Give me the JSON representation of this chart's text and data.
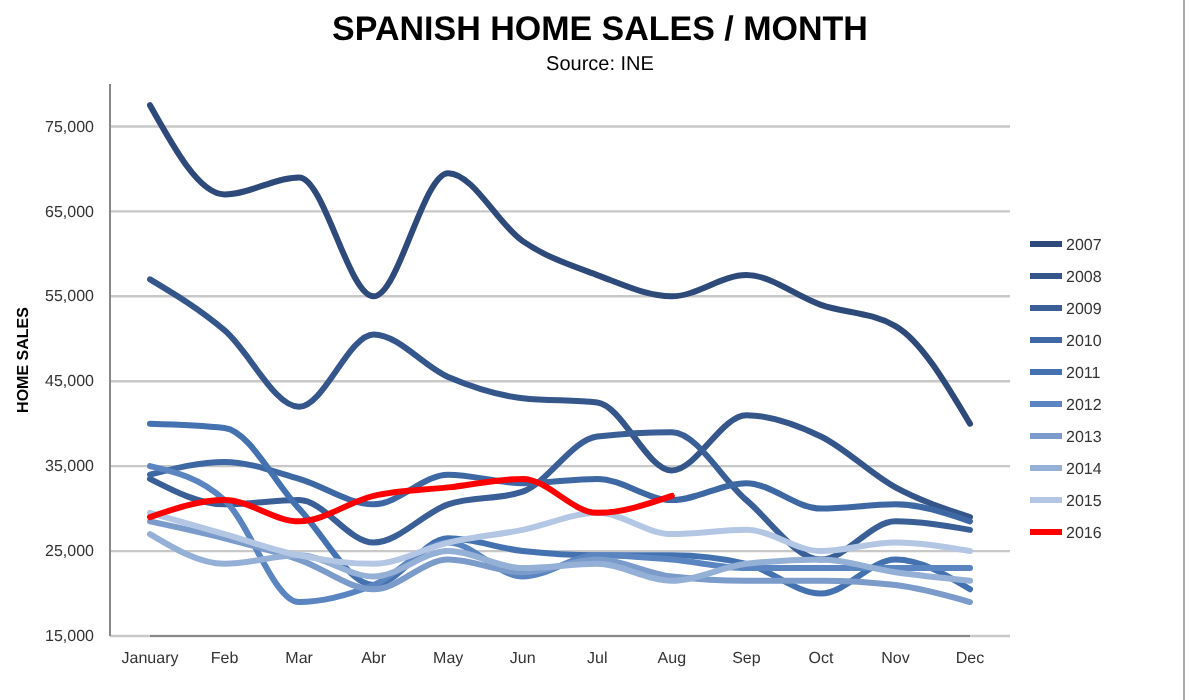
{
  "chart_data": {
    "type": "line",
    "title": "SPANISH HOME SALES / MONTH",
    "subtitle": "Source: INE",
    "ylabel": "HOME SALES",
    "categories": [
      "January",
      "Feb",
      "Mar",
      "Abr",
      "May",
      "Jun",
      "Jul",
      "Aug",
      "Sep",
      "Oct",
      "Nov",
      "Dec"
    ],
    "ylim": [
      15000,
      80000
    ],
    "yticks": [
      {
        "value": 15000,
        "label": "15,000"
      },
      {
        "value": 25000,
        "label": "25,000"
      },
      {
        "value": 35000,
        "label": "35,000"
      },
      {
        "value": 45000,
        "label": "45,000"
      },
      {
        "value": 55000,
        "label": "55,000"
      },
      {
        "value": 65000,
        "label": "65,000"
      },
      {
        "value": 75000,
        "label": "75,000"
      }
    ],
    "grid": "y",
    "legend": "right",
    "marker": "none",
    "line_style": "solid",
    "series": [
      {
        "name": "2007",
        "color": "#2e4a7a",
        "values": [
          77500,
          67000,
          69000,
          55000,
          69500,
          61500,
          57500,
          55000,
          57500,
          54000,
          51500,
          40000
        ]
      },
      {
        "name": "2008",
        "color": "#34568b",
        "values": [
          57000,
          51000,
          42000,
          50500,
          45500,
          43000,
          42500,
          34500,
          41000,
          38500,
          32500,
          29000
        ]
      },
      {
        "name": "2009",
        "color": "#3a5f96",
        "values": [
          33500,
          30500,
          31000,
          26000,
          30500,
          32000,
          38500,
          39000,
          31000,
          24000,
          28500,
          27500
        ]
      },
      {
        "name": "2010",
        "color": "#3e68a3",
        "values": [
          34000,
          35500,
          33500,
          30500,
          34000,
          33000,
          33500,
          31000,
          33000,
          30000,
          30500,
          28500
        ]
      },
      {
        "name": "2011",
        "color": "#4472b0",
        "values": [
          40000,
          39500,
          30000,
          21000,
          26500,
          25000,
          24500,
          24500,
          23500,
          20000,
          24000,
          20500
        ]
      },
      {
        "name": "2012",
        "color": "#5a85c0",
        "values": [
          35000,
          31000,
          19000,
          21000,
          26000,
          22000,
          24500,
          24000,
          23000,
          23000,
          23000,
          23000
        ]
      },
      {
        "name": "2013",
        "color": "#7b9bcb",
        "values": [
          28500,
          26500,
          24000,
          20500,
          24000,
          22500,
          24000,
          22000,
          21500,
          21500,
          21000,
          19000
        ]
      },
      {
        "name": "2014",
        "color": "#95b0d6",
        "values": [
          27000,
          23500,
          24500,
          22000,
          25000,
          23000,
          23500,
          21500,
          23500,
          24000,
          22500,
          21500
        ]
      },
      {
        "name": "2015",
        "color": "#b3c6e4",
        "values": [
          29500,
          27000,
          24500,
          23500,
          26000,
          27500,
          29500,
          27000,
          27500,
          25000,
          26000,
          25000
        ]
      },
      {
        "name": "2016",
        "color": "#ff0000",
        "values": [
          29000,
          31000,
          28500,
          31500,
          32500,
          33500,
          29500,
          31500,
          null,
          null,
          null,
          null
        ]
      }
    ]
  }
}
